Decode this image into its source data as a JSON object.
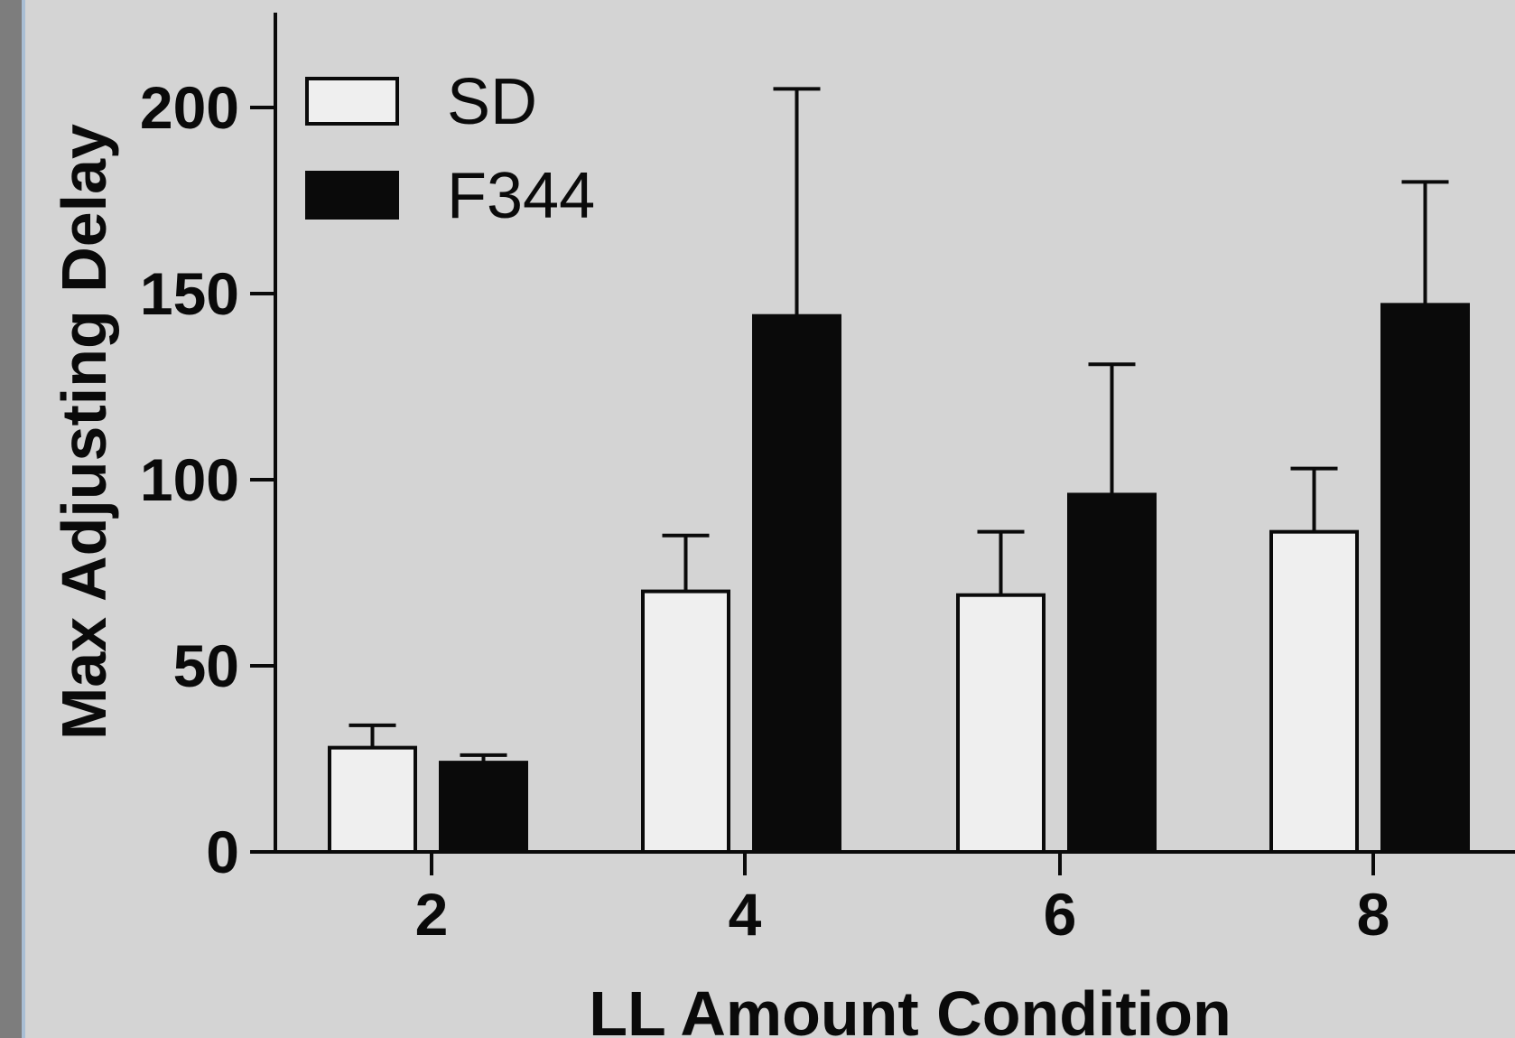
{
  "chart_data": {
    "type": "bar",
    "xlabel": "LL Amount Condition",
    "ylabel": "Max Adjusting Delay",
    "categories": [
      "2",
      "4",
      "6",
      "8"
    ],
    "ylim": [
      0,
      225
    ],
    "yticks": [
      "0",
      "50",
      "100",
      "150",
      "200"
    ],
    "grid": false,
    "legend_position": "top-left",
    "series": [
      {
        "name": "SD",
        "color": "#efefef",
        "values": [
          28,
          70,
          69,
          86
        ],
        "error": [
          6,
          15,
          17,
          17
        ]
      },
      {
        "name": "F344",
        "color": "#0a0a0a",
        "values": [
          24,
          144,
          96,
          147
        ],
        "error": [
          2,
          61,
          35,
          33
        ]
      }
    ]
  }
}
